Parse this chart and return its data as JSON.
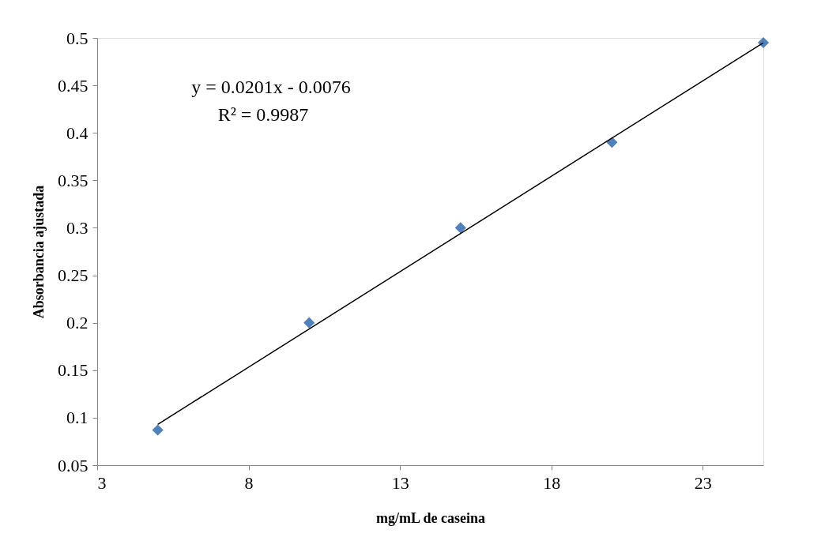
{
  "chart_data": {
    "type": "scatter",
    "xlabel": "mg/mL de caseina",
    "ylabel": "Absorbancia ajustada",
    "xlim": [
      3,
      25
    ],
    "xticks": [
      3,
      8,
      13,
      18,
      23
    ],
    "ylim": [
      0.05,
      0.5
    ],
    "yticks": [
      0.05,
      0.1,
      0.15,
      0.2,
      0.25,
      0.3,
      0.35,
      0.4,
      0.45,
      0.5
    ],
    "grid": false,
    "series": [
      {
        "color": "#4f81bd",
        "marker": "diamond",
        "x": [
          5,
          10,
          15,
          20,
          25
        ],
        "values": [
          0.087,
          0.2,
          0.3,
          0.39,
          0.495
        ]
      },
      {
        "type": "line",
        "color": "#000000",
        "marker": "none",
        "x": [
          5,
          25
        ],
        "values": [
          0.093,
          0.495
        ]
      }
    ],
    "annotations": [
      "y = 0.0201x - 0.0076",
      "R² = 0.9987"
    ]
  }
}
